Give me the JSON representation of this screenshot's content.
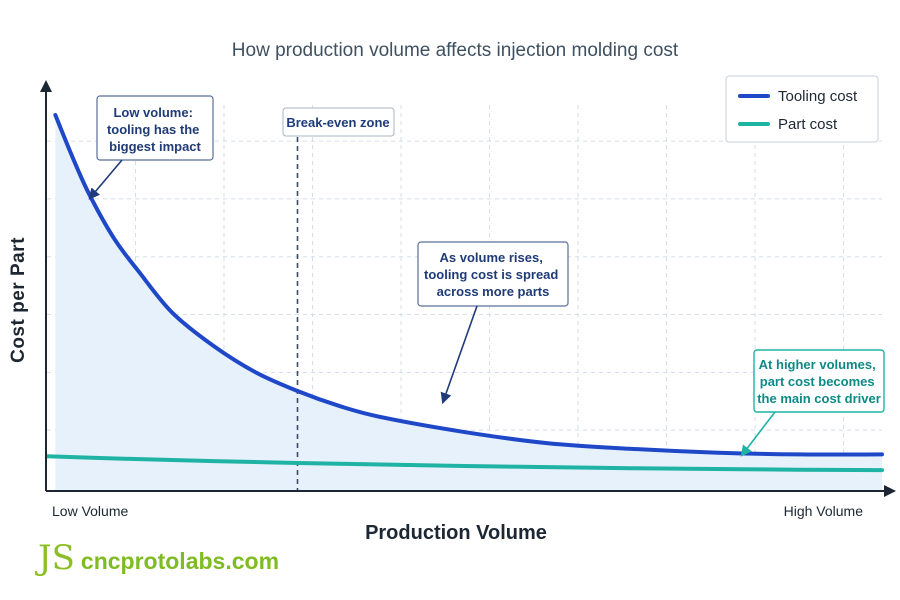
{
  "chart_data": {
    "type": "line",
    "title": "How production volume affects injection molding cost",
    "xlabel": "Production Volume",
    "ylabel": "Cost per Part",
    "x_min_label": "Low Volume",
    "x_max_label": "High Volume",
    "xlim": [
      0,
      100
    ],
    "ylim": [
      0,
      100
    ],
    "grid": true,
    "legend_position": "top-right",
    "series": [
      {
        "name": "Tooling cost",
        "color": "#1f48c8",
        "x": [
          1,
          3,
          5,
          8,
          11,
          15,
          20,
          25,
          30,
          35,
          40,
          50,
          60,
          70,
          80,
          90,
          100
        ],
        "y": [
          100,
          89,
          79,
          67,
          58,
          47,
          38,
          31,
          26,
          22,
          19,
          15,
          12,
          10.5,
          9.5,
          9,
          9
        ]
      },
      {
        "name": "Part cost",
        "color": "#1fb3a4",
        "x": [
          0,
          10,
          20,
          30,
          40,
          50,
          60,
          70,
          80,
          90,
          100
        ],
        "y": [
          8.5,
          7.8,
          7.2,
          6.7,
          6.3,
          5.9,
          5.6,
          5.3,
          5.1,
          4.9,
          4.8
        ]
      }
    ],
    "reference_lines": [
      {
        "label": "Break-even zone",
        "x": 30
      }
    ],
    "annotations": [
      {
        "lines": [
          "Low volume:",
          "tooling has the",
          "biggest impact"
        ],
        "target_series": "Tooling cost",
        "target_x": 5
      },
      {
        "lines": [
          "As volume rises,",
          "tooling cost is spread",
          "across more parts"
        ],
        "target_series": "Tooling cost",
        "target_x": 48
      },
      {
        "lines": [
          "At higher volumes,",
          "part cost becomes",
          "the main cost driver"
        ],
        "target_series": "Part cost",
        "target_x": 85
      }
    ]
  },
  "brand": {
    "logo": "JS",
    "name": "cncprotolabs.com"
  }
}
